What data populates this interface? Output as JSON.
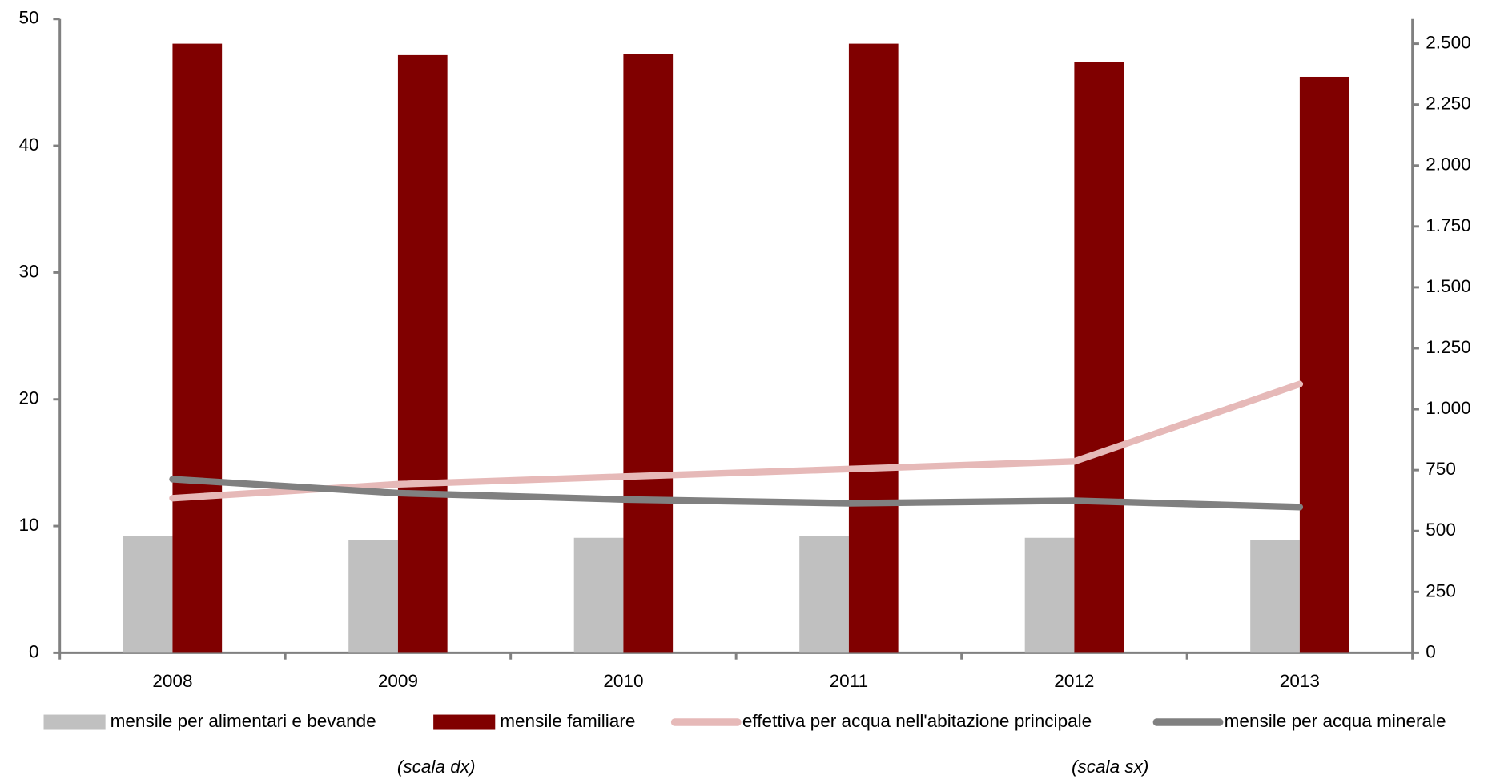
{
  "chart_data": {
    "type": "bar-line",
    "categories": [
      "2008",
      "2009",
      "2010",
      "2011",
      "2012",
      "2013"
    ],
    "series": [
      {
        "name": "mensile per alimentari e bevande",
        "type": "bar",
        "axis": "y2",
        "color": "#c0c0c0",
        "values": [
          480,
          464,
          472,
          480,
          472,
          464
        ]
      },
      {
        "name": "mensile familiare",
        "type": "bar",
        "axis": "y2",
        "color": "#800000",
        "values": [
          2500,
          2453,
          2457,
          2500,
          2426,
          2364
        ]
      },
      {
        "name": "effettiva per acqua nell'abitazione principale",
        "type": "line",
        "axis": "y",
        "color": "#e6b9b8",
        "values": [
          12.2,
          13.3,
          13.9,
          14.5,
          15.1,
          21.2
        ]
      },
      {
        "name": "mensile per acqua minerale",
        "type": "line",
        "axis": "y",
        "color": "#808080",
        "values": [
          13.7,
          12.6,
          12.1,
          11.8,
          12.0,
          11.5
        ]
      }
    ],
    "ylim": [
      0,
      50
    ],
    "yticks": [
      0,
      10,
      20,
      30,
      40,
      50
    ],
    "y2lim": [
      0,
      2500
    ],
    "y2ticks": [
      0,
      250,
      500,
      750,
      {
        "value": 1000,
        "label": "1.000"
      },
      {
        "value": 1250,
        "label": "1.250"
      },
      {
        "value": 1500,
        "label": "1.500"
      },
      {
        "value": 1750,
        "label": "1.750"
      },
      {
        "value": 2000,
        "label": "2.000"
      },
      {
        "value": 2250,
        "label": "2.250"
      },
      {
        "value": 2500,
        "label": "2.500"
      }
    ],
    "notes": [
      "(scala dx)",
      "(scala sx)"
    ],
    "grid": false
  }
}
